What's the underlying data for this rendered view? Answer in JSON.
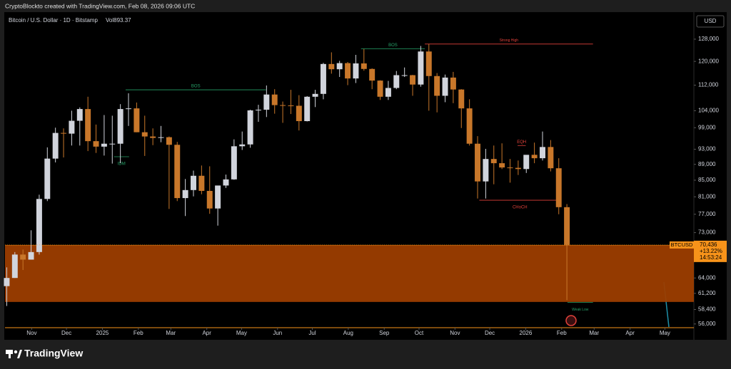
{
  "header": {
    "caption": "CryptoBlockto created with TradingView.com, Feb 08, 2026 09:06 UTC",
    "logo": "TradingView"
  },
  "chart_data": {
    "type": "candlestick",
    "title": "Bitcoin / U.S. Dollar · 1D · Bitstamp",
    "volume_label": "Vol893.37",
    "currency": "USD",
    "symbol": "BTCUSD",
    "last_price": {
      "value": 70436,
      "label": "70,436"
    },
    "change": "+13.22%",
    "countdown": "14:53:24",
    "log_scale": true,
    "up_color": "#d1d4dc",
    "down_color": "#c8772a",
    "xlim": [
      "2024-10-09",
      "2026-05-26"
    ],
    "ylim": [
      55400,
      137600
    ],
    "xticks": [
      {
        "value": "2024-11-01",
        "label": "Nov"
      },
      {
        "value": "2024-12-01",
        "label": "Dec"
      },
      {
        "value": "2025-01-01",
        "label": "2025"
      },
      {
        "value": "2025-02-01",
        "label": "Feb"
      },
      {
        "value": "2025-03-01",
        "label": "Mar"
      },
      {
        "value": "2025-04-01",
        "label": "Apr"
      },
      {
        "value": "2025-05-01",
        "label": "May"
      },
      {
        "value": "2025-06-01",
        "label": "Jun"
      },
      {
        "value": "2025-07-01",
        "label": "Jul"
      },
      {
        "value": "2025-08-01",
        "label": "Aug"
      },
      {
        "value": "2025-09-01",
        "label": "Sep"
      },
      {
        "value": "2025-10-01",
        "label": "Oct"
      },
      {
        "value": "2025-11-01",
        "label": "Nov"
      },
      {
        "value": "2025-12-01",
        "label": "Dec"
      },
      {
        "value": "2026-01-01",
        "label": "2026"
      },
      {
        "value": "2026-02-01",
        "label": "Feb"
      },
      {
        "value": "2026-03-01",
        "label": "Mar"
      },
      {
        "value": "2026-04-01",
        "label": "Apr"
      },
      {
        "value": "2026-05-01",
        "label": "May"
      }
    ],
    "yticks": [
      {
        "value": 128000,
        "label": "128,000"
      },
      {
        "value": 120000,
        "label": "120,000"
      },
      {
        "value": 112000,
        "label": "112,000"
      },
      {
        "value": 104000,
        "label": "104,000"
      },
      {
        "value": 99000,
        "label": "99,000"
      },
      {
        "value": 93000,
        "label": "93,000"
      },
      {
        "value": 89000,
        "label": "89,000"
      },
      {
        "value": 85000,
        "label": "85,000"
      },
      {
        "value": 81000,
        "label": "81,000"
      },
      {
        "value": 77000,
        "label": "77,000"
      },
      {
        "value": 73000,
        "label": "73,000"
      },
      {
        "value": 64000,
        "label": "64,000"
      },
      {
        "value": 61200,
        "label": "61,200"
      },
      {
        "value": 58400,
        "label": "58,400"
      },
      {
        "value": 56000,
        "label": "56,000"
      }
    ],
    "zone": {
      "high": 70400,
      "low": 59700,
      "color": "#9c3d00"
    },
    "x": [
      "2024-10-07",
      "2024-10-14",
      "2024-10-21",
      "2024-10-28",
      "2024-11-04",
      "2024-11-11",
      "2024-11-18",
      "2024-11-25",
      "2024-12-02",
      "2024-12-09",
      "2024-12-16",
      "2024-12-23",
      "2024-12-30",
      "2025-01-06",
      "2025-01-13",
      "2025-01-20",
      "2025-01-27",
      "2025-02-03",
      "2025-02-10",
      "2025-02-17",
      "2025-02-24",
      "2025-03-03",
      "2025-03-10",
      "2025-03-17",
      "2025-03-24",
      "2025-03-31",
      "2025-04-07",
      "2025-04-14",
      "2025-04-21",
      "2025-04-28",
      "2025-05-05",
      "2025-05-12",
      "2025-05-19",
      "2025-05-26",
      "2025-06-02",
      "2025-06-09",
      "2025-06-16",
      "2025-06-23",
      "2025-06-30",
      "2025-07-07",
      "2025-07-14",
      "2025-07-21",
      "2025-07-28",
      "2025-08-04",
      "2025-08-11",
      "2025-08-18",
      "2025-08-25",
      "2025-09-01",
      "2025-09-08",
      "2025-09-15",
      "2025-09-22",
      "2025-09-29",
      "2025-10-06",
      "2025-10-13",
      "2025-10-20",
      "2025-10-27",
      "2025-11-03",
      "2025-11-10",
      "2025-11-17",
      "2025-11-24",
      "2025-12-01",
      "2025-12-08",
      "2025-12-15",
      "2025-12-22",
      "2025-12-29",
      "2026-01-05",
      "2026-01-12",
      "2026-01-19",
      "2026-01-26",
      "2026-02-02"
    ],
    "open": [
      62500,
      64000,
      68500,
      67500,
      69000,
      80500,
      90500,
      97500,
      97300,
      101000,
      104500,
      95200,
      93700,
      94500,
      94500,
      104500,
      104700,
      97700,
      96500,
      96100,
      96300,
      94200,
      80700,
      82600,
      86100,
      82400,
      78300,
      83700,
      85200,
      93800,
      94300,
      104100,
      104300,
      109000,
      105700,
      105600,
      105500,
      100900,
      108300,
      109200,
      119100,
      117300,
      119400,
      114200,
      119300,
      117400,
      113500,
      108300,
      111100,
      115300,
      115300,
      112200,
      123500,
      115000,
      108600,
      114500,
      110600,
      104700,
      94500,
      84700,
      90400,
      89300,
      88200,
      88100,
      87800,
      91500,
      90600,
      93600,
      88000,
      78600
    ],
    "high": [
      66000,
      69000,
      69500,
      73500,
      81500,
      93500,
      99000,
      98800,
      104000,
      105000,
      108300,
      99900,
      102700,
      102500,
      106000,
      109400,
      106500,
      102500,
      98800,
      99500,
      96500,
      95000,
      85300,
      87400,
      88700,
      88500,
      83500,
      86400,
      95700,
      97900,
      104300,
      105800,
      111900,
      110700,
      106800,
      110500,
      108800,
      108500,
      110500,
      119500,
      123200,
      120200,
      119800,
      122300,
      124400,
      117600,
      113600,
      113400,
      116700,
      117900,
      115400,
      125500,
      126200,
      116000,
      115500,
      116400,
      110700,
      107500,
      96600,
      93100,
      94000,
      94600,
      90400,
      90000,
      91000,
      94800,
      97900,
      95500,
      90600,
      79300
    ],
    "low": [
      59000,
      64000,
      65500,
      67500,
      68500,
      80000,
      89500,
      90800,
      94000,
      94000,
      92500,
      92000,
      91300,
      89200,
      89300,
      99500,
      97700,
      91200,
      94100,
      94900,
      78200,
      80000,
      76600,
      81100,
      81600,
      77100,
      74500,
      83100,
      85100,
      92800,
      93400,
      100700,
      102100,
      103100,
      100400,
      103000,
      98200,
      100800,
      105100,
      107500,
      115800,
      114700,
      112000,
      112700,
      116800,
      110700,
      107300,
      107300,
      110700,
      114700,
      108600,
      111500,
      104000,
      103500,
      106600,
      106300,
      98900,
      94000,
      80600,
      80600,
      84000,
      87800,
      84400,
      86300,
      86800,
      89300,
      90000,
      87200,
      77000,
      60000
    ],
    "close": [
      64000,
      68500,
      67500,
      69000,
      80500,
      90500,
      97500,
      97300,
      101000,
      104500,
      95200,
      93700,
      94500,
      94500,
      104500,
      104700,
      97700,
      96500,
      96100,
      96300,
      94200,
      80700,
      82600,
      86100,
      82400,
      78300,
      83700,
      85200,
      93800,
      94300,
      104100,
      104300,
      109000,
      105700,
      105600,
      105500,
      100900,
      108300,
      109200,
      119100,
      117300,
      119400,
      114200,
      119300,
      117400,
      113500,
      108300,
      111100,
      115300,
      115300,
      112200,
      123500,
      115000,
      108600,
      114500,
      110600,
      104700,
      94500,
      84700,
      90400,
      89300,
      88200,
      88100,
      87800,
      91500,
      90600,
      93600,
      88000,
      78600,
      70436
    ],
    "annotations": [
      {
        "text": "BOS",
        "level": 110500,
        "from": "2025-01-21",
        "to": "2025-05-22",
        "color": "#26a269"
      },
      {
        "text": "BOS",
        "level": 124500,
        "from": "2025-08-12",
        "to": "2025-10-06",
        "color": "#26a269"
      },
      {
        "text": "Strong High",
        "level": 126200,
        "from": "2025-10-06",
        "to": "2026-02-28",
        "color": "#e0413a"
      },
      {
        "text": "CHoCH",
        "level": 80200,
        "from": "2025-11-22",
        "to": "2026-01-31",
        "color": "#e0413a"
      },
      {
        "text": "IDM",
        "level": 91000,
        "from": "2025-01-11",
        "to": "2025-01-24",
        "color": "#26a269"
      },
      {
        "text": "EQH",
        "level": 94000,
        "from": "2025-12-25",
        "to": "2026-01-01",
        "color": "#e0413a"
      },
      {
        "text": "Weak Low",
        "level": 59600,
        "from": "2026-02-06",
        "to": "2026-02-28",
        "color": "#26a269"
      }
    ]
  }
}
